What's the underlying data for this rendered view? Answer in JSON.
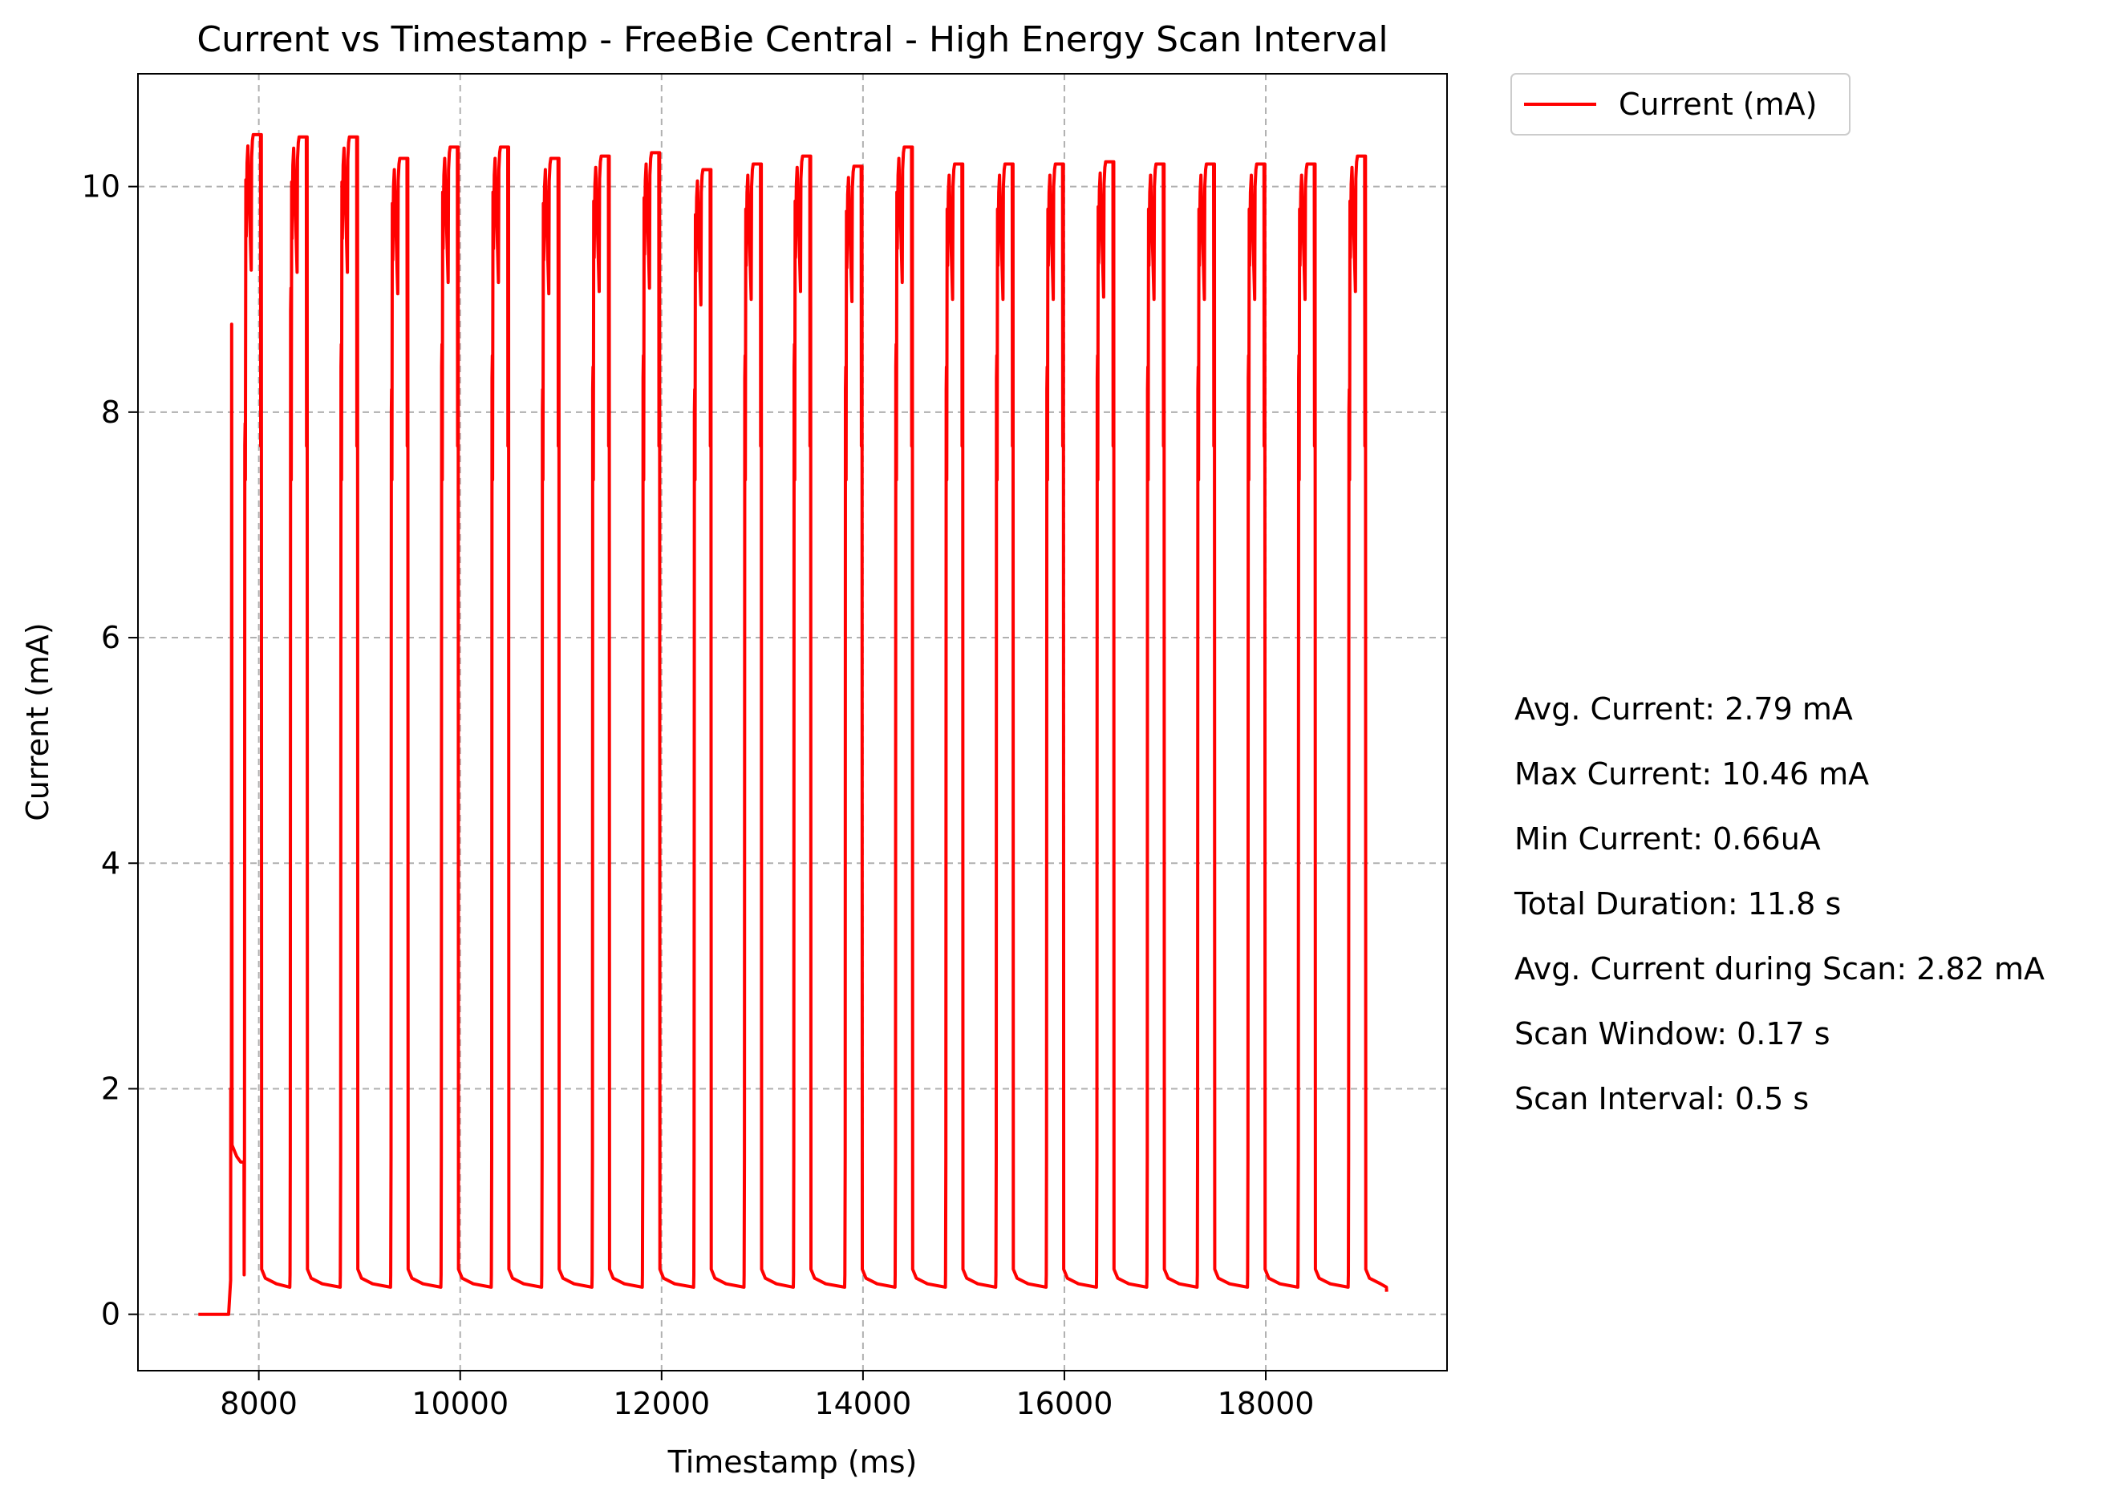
{
  "chart_data": {
    "type": "line",
    "title": "Current vs Timestamp - FreeBie Central - High Energy Scan Interval",
    "xlabel": "Timestamp (ms)",
    "ylabel": "Current (mA)",
    "xlim": [
      6800,
      19800
    ],
    "ylim": [
      -0.5,
      11.0
    ],
    "x_ticks": [
      8000,
      10000,
      12000,
      14000,
      16000,
      18000
    ],
    "y_ticks": [
      0,
      2,
      4,
      6,
      8,
      10
    ],
    "grid": true,
    "legend_position": "outside-top-right",
    "series": [
      {
        "name": "Current (mA)",
        "color": "#ff0000",
        "baseline_start": [
          [
            7400,
            0.0
          ],
          [
            7700,
            0.0
          ]
        ],
        "pulses": [
          {
            "start": 7720,
            "peak": 8.78,
            "spike": 2.0
          },
          {
            "start": 7855,
            "peak": 10.46,
            "spike": 7.7
          },
          {
            "start": 8310,
            "peak": 10.44,
            "spike": 8.9
          },
          {
            "start": 8810,
            "peak": 10.44,
            "spike": 8.4
          },
          {
            "start": 9310,
            "peak": 10.25,
            "spike": 8.0
          },
          {
            "start": 9810,
            "peak": 10.35,
            "spike": 8.4
          },
          {
            "start": 10310,
            "peak": 10.35,
            "spike": 8.3
          },
          {
            "start": 10810,
            "peak": 10.25,
            "spike": 8.0
          },
          {
            "start": 11310,
            "peak": 10.27,
            "spike": 8.2
          },
          {
            "start": 11810,
            "peak": 10.3,
            "spike": 8.3
          },
          {
            "start": 12320,
            "peak": 10.15,
            "spike": 8.0
          },
          {
            "start": 12820,
            "peak": 10.2,
            "spike": 8.3
          },
          {
            "start": 13310,
            "peak": 10.27,
            "spike": 8.4
          },
          {
            "start": 13820,
            "peak": 10.18,
            "spike": 8.2
          },
          {
            "start": 14320,
            "peak": 10.35,
            "spike": 8.4
          },
          {
            "start": 14820,
            "peak": 10.2,
            "spike": 8.2
          },
          {
            "start": 15320,
            "peak": 10.2,
            "spike": 8.3
          },
          {
            "start": 15820,
            "peak": 10.2,
            "spike": 8.2
          },
          {
            "start": 16320,
            "peak": 10.22,
            "spike": 8.3
          },
          {
            "start": 16820,
            "peak": 10.2,
            "spike": 8.2
          },
          {
            "start": 17320,
            "peak": 10.2,
            "spike": 8.2
          },
          {
            "start": 17820,
            "peak": 10.2,
            "spike": 8.3
          },
          {
            "start": 18320,
            "peak": 10.2,
            "spike": 8.3
          },
          {
            "start": 18820,
            "peak": 10.27,
            "spike": 8.0
          }
        ],
        "pulse_width_ms": 170,
        "tail_start": 0.35,
        "tail_end": 0.2,
        "end_x": 19200
      }
    ],
    "annotations": [
      "Avg. Current: 2.79 mA",
      "Max Current: 10.46 mA",
      "Min Current: 0.66uA",
      "Total Duration: 11.8 s",
      "Avg. Current during Scan: 2.82 mA",
      "Scan Window: 0.17 s",
      "Scan Interval: 0.5 s"
    ]
  }
}
